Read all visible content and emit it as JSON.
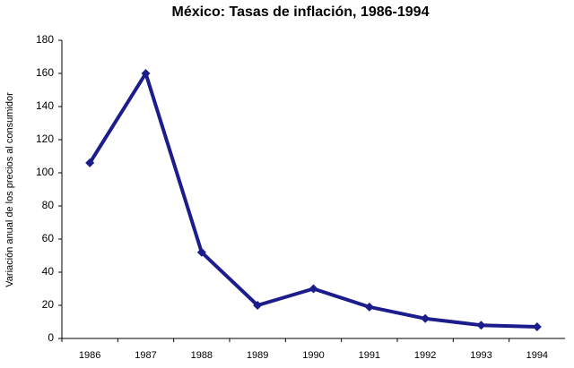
{
  "chart_data": {
    "type": "line",
    "title": "México: Tasas de inflación, 1986-1994",
    "y_label": "Variación anual de los precios al consumidor",
    "categories": [
      "1986",
      "1987",
      "1988",
      "1989",
      "1990",
      "1991",
      "1992",
      "1993",
      "1994"
    ],
    "values": [
      106,
      160,
      52,
      20,
      30,
      19,
      12,
      8,
      7
    ],
    "color": "#1c1c8c",
    "ylim": [
      0,
      180
    ],
    "yticks": [
      0,
      20,
      40,
      60,
      80,
      100,
      120,
      140,
      160,
      180
    ],
    "grid": false
  }
}
